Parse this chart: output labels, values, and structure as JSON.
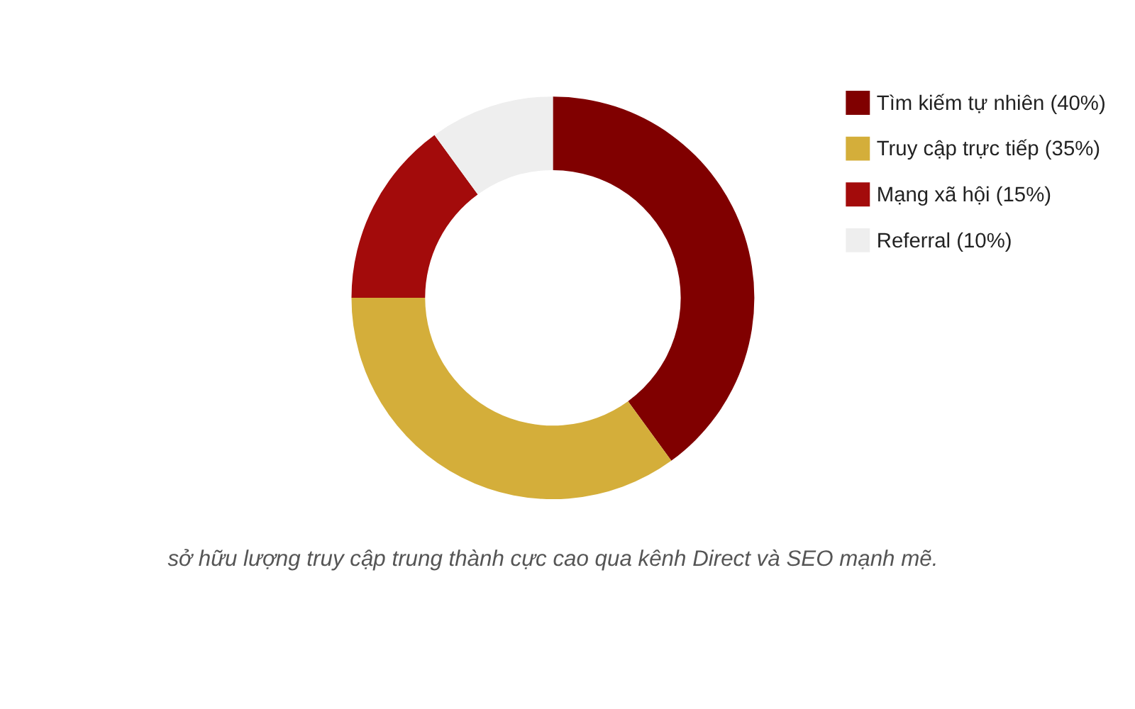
{
  "chart_data": {
    "type": "donut",
    "categories": [
      "Tìm kiếm tự nhiên (40%)",
      "Truy cập trực tiếp (35%)",
      "Mạng xã hội (15%)",
      "Referral (10%)"
    ],
    "values": [
      40,
      35,
      15,
      10
    ],
    "colors": [
      "#800000",
      "#d4ae3a",
      "#a30b0b",
      "#eeeeee"
    ],
    "legend": "right",
    "annotations": [
      "sở hữu lượng truy cập trung thành cực cao qua kênh Direct và SEO mạnh mẽ."
    ]
  }
}
